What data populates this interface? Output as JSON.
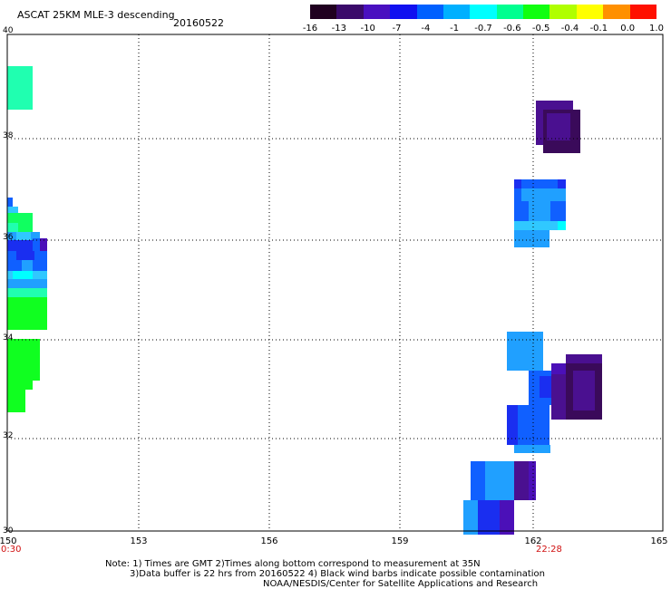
{
  "header": {
    "title": "ASCAT 25KM MLE-3 descending",
    "date": "20160522"
  },
  "colorbar": {
    "labels": [
      "-16",
      "-13",
      "-10",
      "-7",
      "-4",
      "-1",
      "-0.7",
      "-0.6",
      "-0.5",
      "-0.4",
      "-0.1",
      "0.0",
      "1.0"
    ],
    "colors": [
      "#200020",
      "#3a0a6a",
      "#4a10c0",
      "#1010f0",
      "#0060ff",
      "#00b0ff",
      "#00ffff",
      "#00ff90",
      "#10ff10",
      "#b0ff00",
      "#ffff00",
      "#ff9000",
      "#ff1000"
    ]
  },
  "axes": {
    "lat_labels": [
      "40",
      "38",
      "36",
      "34",
      "32",
      "30"
    ],
    "lon_labels": [
      "150",
      "153",
      "156",
      "159",
      "162",
      "165"
    ],
    "time_labels": [
      "0:30",
      "22:28"
    ]
  },
  "notes": {
    "line1": "Note: 1) Times are GMT 2)Times along bottom correspond to measurement at 35N",
    "line2": "3)Data buffer is 22 hrs from 20160522 4) Black wind barbs indicate possible contamination",
    "line3": "NOAA/NESDIS/Center for Satellite Applications and Research"
  },
  "colors": {
    "time_label": "#d01010",
    "grid": "#000000"
  }
}
